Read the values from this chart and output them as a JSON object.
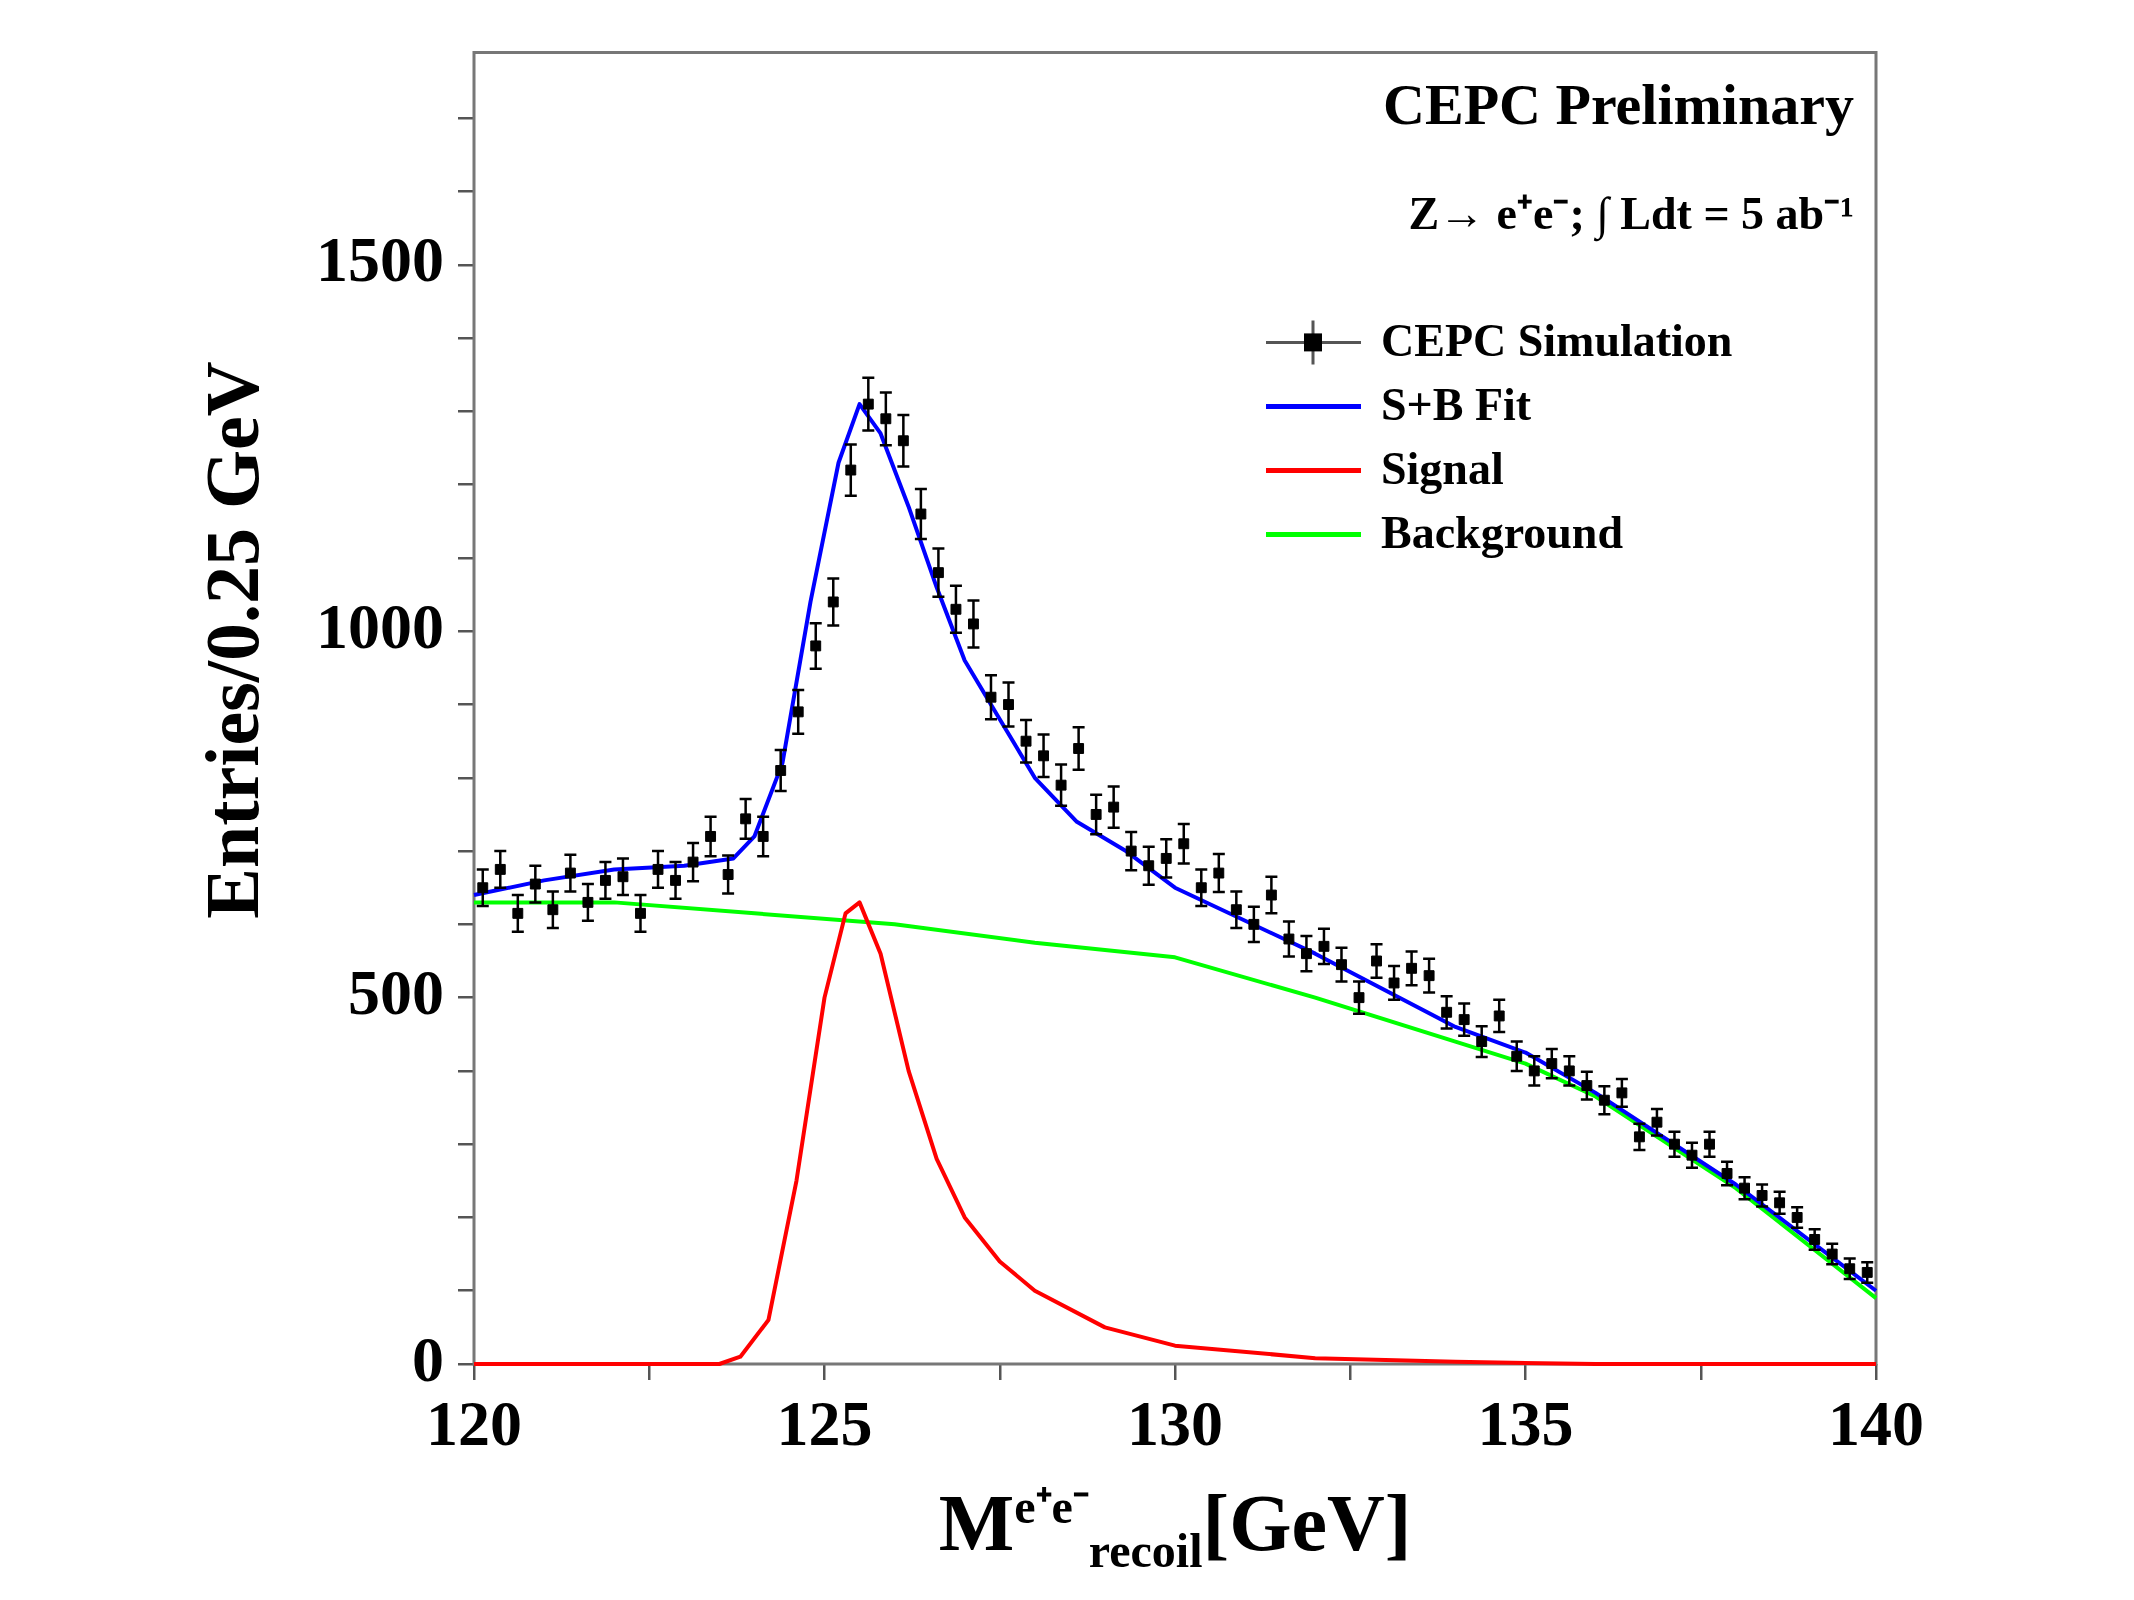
{
  "chart_data": {
    "type": "scatter",
    "xlabel": "M$^{e⁺e⁻}$$_{recoil}$[GeV]",
    "ylabel": "Entries/0.25 GeV",
    "annotations": [
      "CEPC Preliminary",
      "Z→ e⁺e⁻; ∫ Ldt = 5 ab⁻¹"
    ],
    "xlim": [
      120,
      140
    ],
    "ylim": [
      0,
      1790
    ],
    "xticks": [
      120,
      {
        "value": 122.5,
        "label": null
      },
      125,
      {
        "value": 127.5,
        "label": null
      },
      130,
      {
        "value": 132.5,
        "label": null
      },
      135,
      {
        "value": 137.5,
        "label": null
      },
      140
    ],
    "yticks": [
      0,
      {
        "value": 100,
        "label": null
      },
      {
        "value": 200,
        "label": null
      },
      {
        "value": 300,
        "label": null
      },
      {
        "value": 400,
        "label": null
      },
      500,
      {
        "value": 600,
        "label": null
      },
      {
        "value": 700,
        "label": null
      },
      {
        "value": 800,
        "label": null
      },
      {
        "value": 900,
        "label": null
      },
      1000,
      {
        "value": 1100,
        "label": null
      },
      {
        "value": 1200,
        "label": null
      },
      {
        "value": 1300,
        "label": null
      },
      {
        "value": 1400,
        "label": null
      },
      1500,
      {
        "value": 1600,
        "label": null
      },
      {
        "value": 1700,
        "label": null
      }
    ],
    "legend": "top right",
    "series": [
      {
        "name": "CEPC Simulation",
        "marker": "square",
        "color": "#000000",
        "x": [
          120.125,
          120.375,
          120.625,
          120.875,
          121.125,
          121.375,
          121.625,
          121.875,
          122.125,
          122.375,
          122.625,
          122.875,
          123.125,
          123.375,
          123.625,
          123.875,
          124.125,
          124.375,
          124.625,
          124.875,
          125.125,
          125.375,
          125.625,
          125.875,
          126.125,
          126.375,
          126.625,
          126.875,
          127.125,
          127.375,
          127.625,
          127.875,
          128.125,
          128.375,
          128.625,
          128.875,
          129.125,
          129.375,
          129.625,
          129.875,
          130.125,
          130.375,
          130.625,
          130.875,
          131.125,
          131.375,
          131.625,
          131.875,
          132.125,
          132.375,
          132.625,
          132.875,
          133.125,
          133.375,
          133.625,
          133.875,
          134.125,
          134.375,
          134.625,
          134.875,
          135.125,
          135.375,
          135.625,
          135.875,
          136.125,
          136.375,
          136.625,
          136.875,
          137.125,
          137.375,
          137.625,
          137.875,
          138.125,
          138.375,
          138.625,
          138.875,
          139.125,
          139.375,
          139.625,
          139.875
        ],
        "values": [
          650,
          675,
          615,
          655,
          620,
          670,
          630,
          660,
          665,
          615,
          675,
          660,
          685,
          720,
          668,
          744,
          720,
          810,
          890,
          980,
          1040,
          1220,
          1310,
          1290,
          1260,
          1160,
          1080,
          1030,
          1010,
          910,
          900,
          850,
          830,
          790,
          840,
          750,
          760,
          700,
          680,
          690,
          710,
          650,
          670,
          620,
          600,
          640,
          580,
          560,
          570,
          545,
          500,
          550,
          520,
          540,
          530,
          480,
          470,
          440,
          475,
          420,
          400,
          410,
          400,
          380,
          360,
          370,
          310,
          330,
          300,
          285,
          300,
          260,
          240,
          230,
          220,
          200,
          170,
          150,
          130,
          125
        ],
        "errors": [
          25,
          25,
          25,
          25,
          25,
          25,
          25,
          25,
          25,
          25,
          25,
          25,
          26,
          27,
          26,
          27,
          27,
          28,
          30,
          31,
          32,
          35,
          36,
          36,
          35,
          34,
          33,
          32,
          32,
          30,
          30,
          29,
          29,
          28,
          29,
          27,
          28,
          26,
          26,
          26,
          27,
          25,
          26,
          25,
          24,
          25,
          24,
          24,
          24,
          23,
          22,
          23,
          23,
          23,
          23,
          22,
          22,
          21,
          22,
          20,
          20,
          20,
          20,
          19,
          19,
          19,
          18,
          18,
          17,
          17,
          17,
          16,
          15,
          15,
          15,
          14,
          14,
          14,
          14,
          14
        ]
      },
      {
        "name": "S+B Fit",
        "type": "line",
        "marker": "none",
        "color": "#0000ff",
        "x": [
          120,
          121,
          122,
          123,
          123.7,
          124,
          124.4,
          124.8,
          125.2,
          125.5,
          125.8,
          126.2,
          126.6,
          127,
          127.5,
          128,
          128.6,
          129.3,
          130,
          132,
          134,
          135,
          136,
          138,
          140
        ],
        "values": [
          640,
          660,
          675,
          680,
          690,
          720,
          820,
          1040,
          1230,
          1310,
          1270,
          1170,
          1060,
          960,
          880,
          800,
          740,
          700,
          650,
          560,
          460,
          425,
          370,
          245,
          100
        ]
      },
      {
        "name": "Signal",
        "type": "line",
        "marker": "none",
        "color": "#ff0000",
        "x": [
          120,
          123.5,
          123.8,
          124.2,
          124.6,
          125,
          125.3,
          125.5,
          125.8,
          126.2,
          126.6,
          127,
          127.5,
          128,
          129,
          130,
          132,
          134,
          136,
          140
        ],
        "values": [
          0,
          0,
          10,
          60,
          250,
          500,
          615,
          630,
          560,
          400,
          280,
          200,
          140,
          100,
          50,
          25,
          8,
          3,
          0,
          0
        ]
      },
      {
        "name": "Background",
        "type": "line",
        "marker": "none",
        "color": "#00ff00",
        "x": [
          120,
          122,
          124,
          126,
          128,
          130,
          132,
          134,
          135,
          136,
          138,
          140
        ],
        "values": [
          630,
          630,
          615,
          600,
          575,
          555,
          500,
          440,
          410,
          365,
          240,
          90
        ]
      }
    ]
  }
}
